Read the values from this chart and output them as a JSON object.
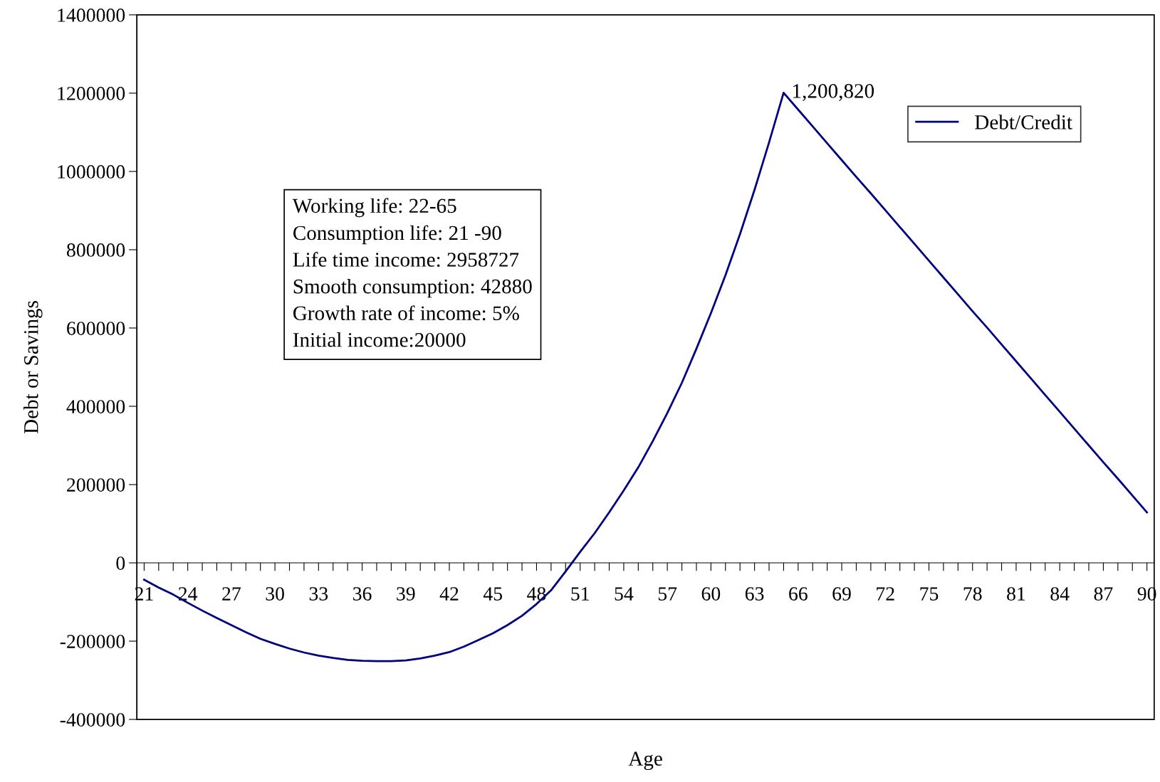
{
  "chart_data": {
    "type": "line",
    "xlabel": "Age",
    "ylabel": "Debt or Savings",
    "categories": [
      "21",
      null,
      null,
      "24",
      null,
      null,
      "27",
      null,
      null,
      "30",
      null,
      null,
      "33",
      null,
      null,
      "36",
      null,
      null,
      "39",
      null,
      null,
      "42",
      null,
      null,
      "45",
      null,
      null,
      "48",
      null,
      null,
      "51",
      null,
      null,
      "54",
      null,
      null,
      "57",
      null,
      null,
      "60",
      null,
      null,
      "63",
      null,
      null,
      "66",
      null,
      null,
      "69",
      null,
      null,
      "72",
      null,
      null,
      "75",
      null,
      null,
      "78",
      null,
      null,
      "81",
      null,
      null,
      "84",
      null,
      null,
      "87",
      null,
      null,
      "90"
    ],
    "series": [
      {
        "name": "Debt/Credit",
        "color": "#000080",
        "values": [
          -43000,
          -63000,
          -81000,
          -102000,
          -122000,
          -141000,
          -159000,
          -177000,
          -194000,
          -207000,
          -219000,
          -229000,
          -237000,
          -243000,
          -248000,
          -250000,
          -251000,
          -251000,
          -249000,
          -244000,
          -237000,
          -228000,
          -214000,
          -197000,
          -180000,
          -159000,
          -135000,
          -105000,
          -70000,
          -22000,
          28000,
          76000,
          129000,
          185000,
          244000,
          311000,
          383000,
          460000,
          547000,
          638000,
          735000,
          840000,
          953000,
          1074000,
          1200820,
          1158000,
          1115000,
          1072000,
          1029000,
          986000,
          944000,
          901000,
          858000,
          815000,
          772000,
          729000,
          686000,
          643000,
          601000,
          558000,
          515000,
          472000,
          429000,
          386000,
          343000,
          300000,
          257000,
          215000,
          172000,
          129000
        ],
        "value_labels": [
          null,
          null,
          null,
          null,
          null,
          null,
          null,
          null,
          null,
          null,
          null,
          null,
          null,
          null,
          null,
          null,
          null,
          null,
          null,
          null,
          null,
          null,
          null,
          null,
          null,
          null,
          null,
          null,
          null,
          null,
          null,
          null,
          null,
          null,
          null,
          null,
          null,
          null,
          null,
          null,
          null,
          null,
          null,
          null,
          "1,200,820",
          null,
          null,
          null,
          null,
          null,
          null,
          null,
          null,
          null,
          null,
          null,
          null,
          null,
          null,
          null,
          null,
          null,
          null,
          null,
          null,
          null,
          null,
          null,
          null,
          null
        ]
      }
    ],
    "ylim": [
      -400000,
      1400000
    ],
    "yticks": [
      -400000,
      -200000,
      0,
      200000,
      400000,
      600000,
      800000,
      1000000,
      1200000,
      1400000
    ],
    "grid": false,
    "legend": "top right",
    "marker": "none",
    "line_style": "solid",
    "annotations": [
      "Working life: 22-65",
      "Consumption life: 21 -90",
      "Life time income: 2958727",
      "Smooth consumption: 42880",
      "Growth rate of income: 5%",
      "Initial income:20000"
    ]
  }
}
